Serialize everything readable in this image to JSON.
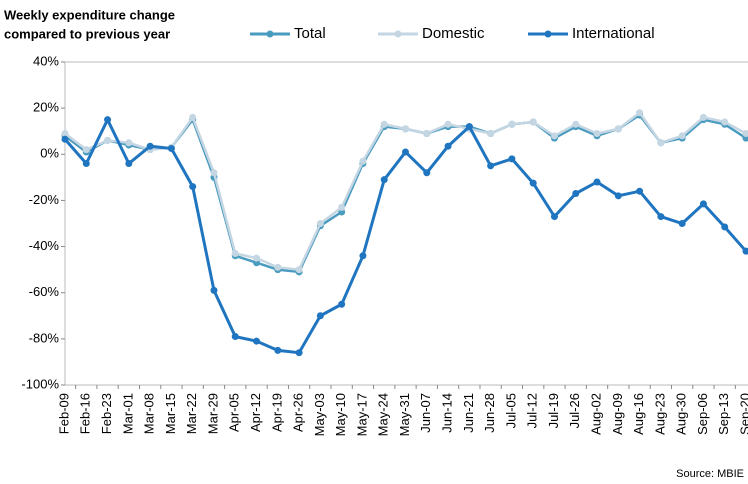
{
  "chart_data": {
    "type": "line",
    "title": [
      "Weekly expenditure change",
      "compared to previous year"
    ],
    "source": "Source: MBIE",
    "categories": [
      "Feb-09",
      "Feb-16",
      "Feb-23",
      "Mar-01",
      "Mar-08",
      "Mar-15",
      "Mar-22",
      "Mar-29",
      "Apr-05",
      "Apr-12",
      "Apr-19",
      "Apr-26",
      "May-03",
      "May-10",
      "May-17",
      "May-24",
      "May-31",
      "Jun-07",
      "Jun-14",
      "Jun-21",
      "Jun-28",
      "Jul-05",
      "Jul-12",
      "Jul-19",
      "Jul-26",
      "Aug-02",
      "Aug-09",
      "Aug-16",
      "Aug-23",
      "Aug-30",
      "Sep-06",
      "Sep-13",
      "Sep-20"
    ],
    "series": [
      {
        "name": "Total",
        "color": "#4a9bc0",
        "values": [
          8,
          1,
          6,
          4,
          2,
          3,
          15,
          -10,
          -44,
          -47,
          -50,
          -51,
          -31,
          -25,
          -4,
          12,
          11,
          9,
          12,
          12,
          9,
          13,
          14,
          7,
          12,
          8,
          11,
          17,
          5,
          7,
          15,
          13,
          7
        ]
      },
      {
        "name": "Domestic",
        "color": "#c5d6e3",
        "values": [
          9,
          2,
          6,
          5,
          2,
          3,
          16,
          -8,
          -43,
          -45,
          -49,
          -50,
          -30,
          -23,
          -3,
          13,
          11,
          9,
          13,
          11,
          9,
          13,
          14,
          8,
          13,
          9,
          11,
          18,
          5,
          8,
          16,
          14,
          9
        ]
      },
      {
        "name": "International",
        "color": "#1f75bf",
        "values": [
          6.5,
          -4,
          15,
          -4,
          3.5,
          2.5,
          -14,
          -59,
          -79,
          -81,
          -85,
          -86,
          -70,
          -65,
          -44,
          -11,
          1,
          -8,
          3.5,
          12,
          -5,
          -2,
          -12.5,
          -27,
          -17,
          -12,
          -18,
          -16,
          -27,
          -30,
          -21.5,
          -31.5,
          -42
        ]
      }
    ],
    "ylim": [
      -100,
      40
    ],
    "yticks": [
      {
        "value": -100,
        "label": "-100%"
      },
      {
        "value": -80,
        "label": "-80%"
      },
      {
        "value": -60,
        "label": "-60%"
      },
      {
        "value": -40,
        "label": "-40%"
      },
      {
        "value": -20,
        "label": "-20%"
      },
      {
        "value": 0,
        "label": "0%"
      },
      {
        "value": 20,
        "label": "20%"
      },
      {
        "value": 40,
        "label": "40%"
      }
    ],
    "grid": false
  }
}
